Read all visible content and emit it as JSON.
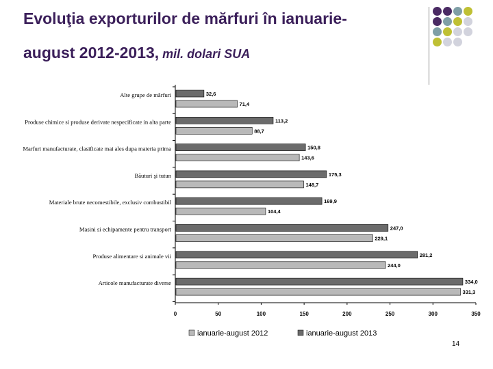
{
  "header": {
    "title_line1": "Evoluţia exporturilor de mărfuri în ianuarie-",
    "title_line2": "august 2012-2013,",
    "unit": " mil. dolari SUA"
  },
  "page_number": "14",
  "decoration": {
    "dot_colors": [
      [
        "#4a2a63",
        "#4a2a63",
        "#7f9fa6",
        "#bfc034"
      ],
      [
        "#4a2a63",
        "#7f9fa6",
        "#bfc034",
        "#d2d3dd"
      ],
      [
        "#7f9fa6",
        "#bfc034",
        "#d2d3dd",
        "#d2d3dd"
      ],
      [
        "#bfc034",
        "#d2d3dd",
        "#d2d3dd",
        "#ffffff"
      ]
    ]
  },
  "chart_data": {
    "type": "bar",
    "orientation": "horizontal",
    "title": "",
    "xlabel": "",
    "ylabel": "",
    "xlim": [
      0,
      350
    ],
    "x_ticks": [
      0,
      50,
      100,
      150,
      200,
      250,
      300,
      350
    ],
    "grid": false,
    "legend_position": "bottom",
    "categories": [
      "Alte grupe de mărfuri",
      "Produse chimice si produse derivate nespecificate in alta parte",
      "Marfuri manufacturate, clasificate mai ales dupa materia prima",
      "Băuturi şi tutun",
      "Materiale brute necomestibile, exclusiv combustibil",
      "Masini si echipamente pentru transport",
      "Produse alimentare si animale vii",
      "Articole manufacturate diverse"
    ],
    "series": [
      {
        "name": "ianuarie-august 2013",
        "color": "#6b6b6b",
        "values": [
          32.6,
          113.2,
          150.8,
          175.3,
          169.9,
          247.0,
          281.2,
          334.0
        ],
        "labels": [
          "32,6",
          "113,2",
          "150,8",
          "175,3",
          "169,9",
          "247,0",
          "281,2",
          "334,0"
        ]
      },
      {
        "name": "ianuarie-august 2012",
        "color": "#b9b9b9",
        "values": [
          71.4,
          88.7,
          143.6,
          148.7,
          104.4,
          229.1,
          244.0,
          331.3
        ],
        "labels": [
          "71,4",
          "88,7",
          "143,6",
          "148,7",
          "104,4",
          "229,1",
          "244,0",
          "331,3"
        ]
      }
    ],
    "legend": [
      {
        "label": "ianuarie-august 2012",
        "color": "#b9b9b9"
      },
      {
        "label": "ianuarie-august 2013",
        "color": "#6b6b6b"
      }
    ]
  }
}
